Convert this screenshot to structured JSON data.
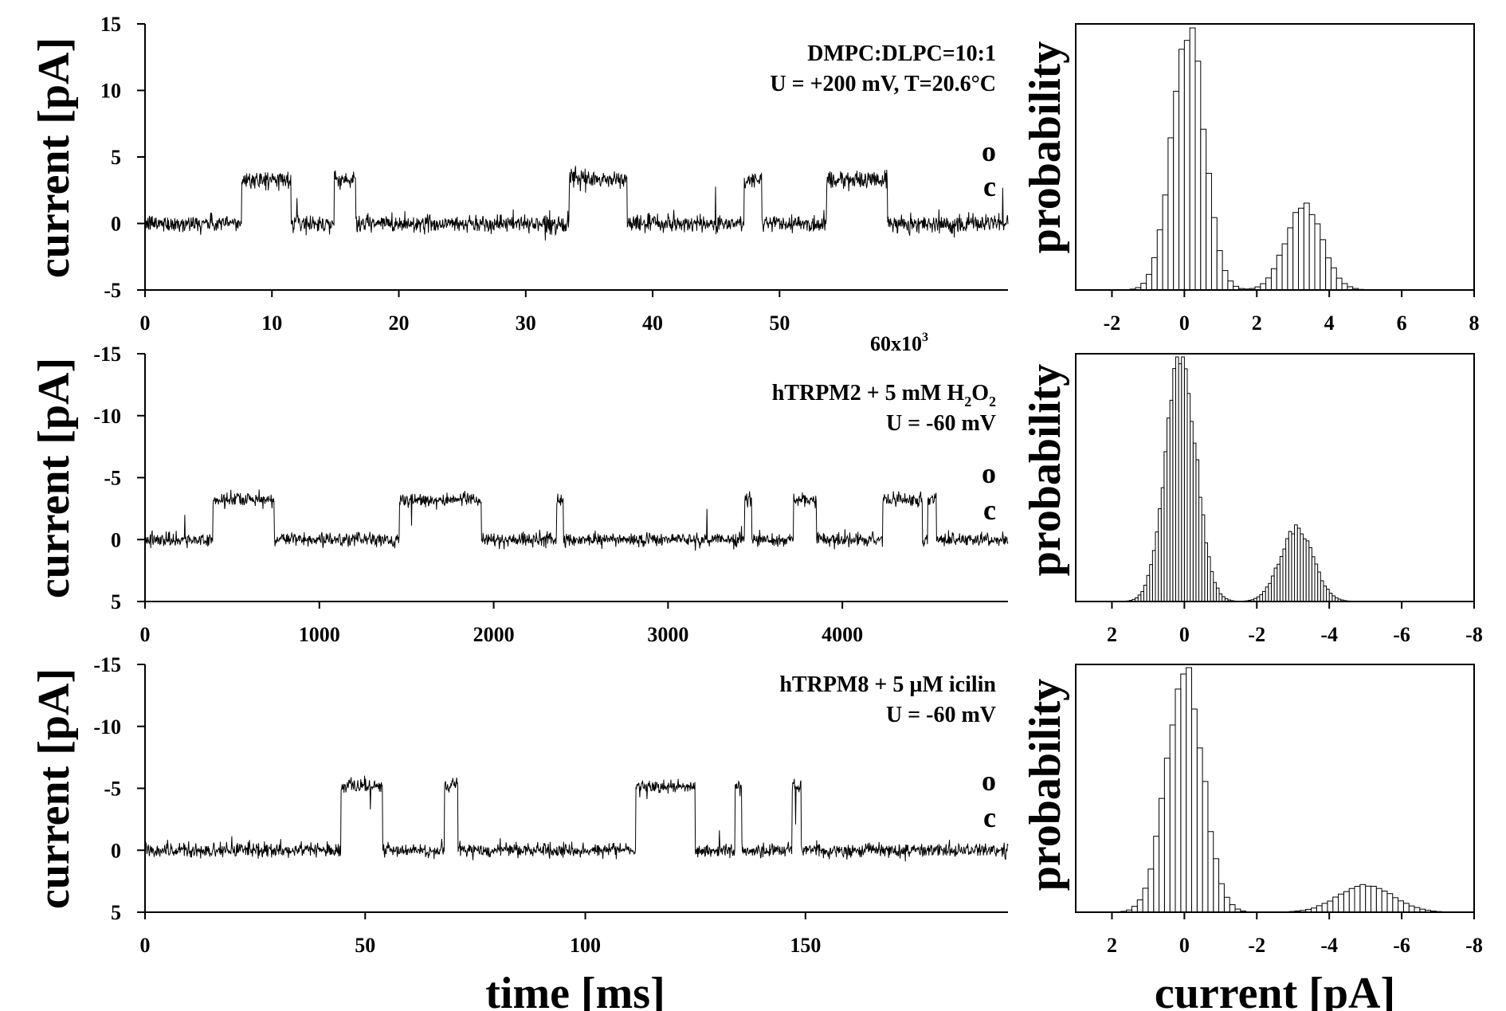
{
  "chart_data": [
    {
      "id": "trace-1",
      "type": "line",
      "ylabel": "current [pA]",
      "xlabel": "",
      "xlim": [
        0,
        68000
      ],
      "ylim": [
        15,
        -5
      ],
      "xticks": [
        0,
        10,
        20,
        30,
        40,
        50
      ],
      "xtick_scale": 1000,
      "xtick_multiplier_label": "60x10",
      "xtick_multiplier_exp": "3",
      "yticks": [
        15,
        10,
        5,
        0,
        -5
      ],
      "ytick_labels": [
        "15",
        "10",
        "5",
        "0",
        "-5"
      ],
      "annotations": [
        "DMPC:DLPC=10:1",
        "U = +200 mV, T=20.6°C"
      ],
      "open_label": "o",
      "closed_label": "c",
      "closed_level": 0,
      "open_level": 3.3,
      "noise": 0.6,
      "open_intervals": [
        [
          7600,
          11500
        ],
        [
          14900,
          16600
        ],
        [
          33400,
          38000
        ],
        [
          47200,
          48600
        ],
        [
          53700,
          58500
        ]
      ]
    },
    {
      "id": "hist-1",
      "type": "bar",
      "ylabel": "probability",
      "xlabel": "",
      "xlim": [
        -3,
        8
      ],
      "xticks": [
        -2,
        0,
        2,
        4,
        6,
        8
      ],
      "xtick_labels": [
        "-2",
        "0",
        "2",
        "4",
        "6",
        "8"
      ],
      "bin_width": 0.15,
      "peaks": [
        {
          "mean": 0.1,
          "sd": 0.45,
          "height": 1.0
        },
        {
          "mean": 3.3,
          "sd": 0.5,
          "height": 0.32
        }
      ]
    },
    {
      "id": "trace-2",
      "type": "line",
      "ylabel": "current [pA]",
      "xlabel": "",
      "xlim": [
        0,
        4950
      ],
      "ylim": [
        -15,
        5
      ],
      "xticks": [
        0,
        1000,
        2000,
        3000,
        4000
      ],
      "xtick_scale": 1,
      "yticks": [
        -15,
        -10,
        -5,
        0,
        5
      ],
      "ytick_labels": [
        "-15",
        "-10",
        "-5",
        "0",
        "5"
      ],
      "annotations": [
        "hTRPM2 + 5 mM H",
        "2",
        "O",
        "2",
        "U = -60 mV"
      ],
      "open_label": "o",
      "closed_label": "c",
      "closed_level": 0,
      "open_level": -3.2,
      "noise": 0.5,
      "open_intervals": [
        [
          390,
          740
        ],
        [
          1460,
          1930
        ],
        [
          2360,
          2400
        ],
        [
          3440,
          3480
        ],
        [
          3720,
          3850
        ],
        [
          4230,
          4460
        ],
        [
          4490,
          4540
        ]
      ]
    },
    {
      "id": "hist-2",
      "type": "bar",
      "ylabel": "probability",
      "xlabel": "",
      "xlim": [
        3,
        -8
      ],
      "xticks": [
        2,
        0,
        -2,
        -4,
        -6,
        -8
      ],
      "xtick_labels": [
        "2",
        "0",
        "-2",
        "-4",
        "-6",
        "-8"
      ],
      "bin_width": 0.08,
      "peaks": [
        {
          "mean": 0.1,
          "sd": 0.42,
          "height": 1.0
        },
        {
          "mean": -3.1,
          "sd": 0.45,
          "height": 0.3
        }
      ]
    },
    {
      "id": "trace-3",
      "type": "line",
      "ylabel": "current [pA]",
      "xlabel": "time [ms]",
      "xlim": [
        0,
        196
      ],
      "ylim": [
        -15,
        5
      ],
      "xticks": [
        0,
        50,
        100,
        150
      ],
      "xtick_scale": 1,
      "yticks": [
        -15,
        -10,
        -5,
        0,
        5
      ],
      "ytick_labels": [
        "-15",
        "-10",
        "-5",
        "0",
        "5"
      ],
      "annotations": [
        "hTRPM8 + 5 µM icilin",
        "U = -60 mV"
      ],
      "open_label": "o",
      "closed_label": "c",
      "closed_level": 0,
      "open_level": -5.2,
      "noise": 0.5,
      "open_intervals": [
        [
          44.5,
          54
        ],
        [
          68,
          71
        ],
        [
          111.5,
          125
        ],
        [
          134,
          135.5
        ],
        [
          147,
          149
        ]
      ]
    },
    {
      "id": "hist-3",
      "type": "bar",
      "ylabel": "probability",
      "xlabel": "current [pA]",
      "xlim": [
        3,
        -8
      ],
      "xticks": [
        2,
        0,
        -2,
        -4,
        -6,
        -8
      ],
      "xtick_labels": [
        "2",
        "0",
        "-2",
        "-4",
        "-6",
        "-8"
      ],
      "bin_width": 0.15,
      "peaks": [
        {
          "mean": 0.0,
          "sd": 0.5,
          "height": 1.0
        },
        {
          "mean": -5.0,
          "sd": 0.75,
          "height": 0.11
        }
      ]
    }
  ]
}
